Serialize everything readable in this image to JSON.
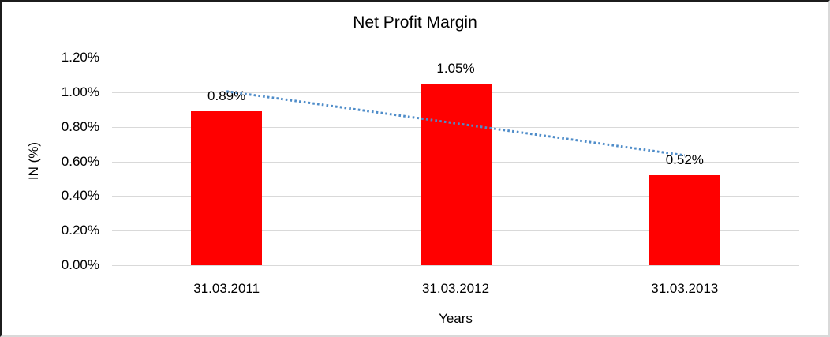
{
  "chart_data": {
    "type": "bar",
    "title": "Net Profit Margin",
    "xlabel": "Years",
    "ylabel": "IN (%)",
    "categories": [
      "31.03.2011",
      "31.03.2012",
      "31.03.2013"
    ],
    "series": [
      {
        "name": "Net Profit Margin",
        "values": [
          0.89,
          1.05,
          0.52
        ]
      }
    ],
    "data_labels": [
      "0.89%",
      "1.05%",
      "0.52%"
    ],
    "ylim": [
      0,
      1.2
    ],
    "ytick_step": 0.2,
    "ytick_labels": [
      "0.00%",
      "0.20%",
      "0.40%",
      "0.60%",
      "0.80%",
      "1.00%",
      "1.20%"
    ],
    "grid": true,
    "legend": "none",
    "trendline": {
      "type": "linear",
      "style": "dotted",
      "endpoint_values": [
        1.005,
        0.635
      ]
    },
    "colors": {
      "bar": "#FF0000",
      "trendline": "#4E8CC9",
      "gridline": "#D9D9D9",
      "text": "#000000"
    }
  }
}
